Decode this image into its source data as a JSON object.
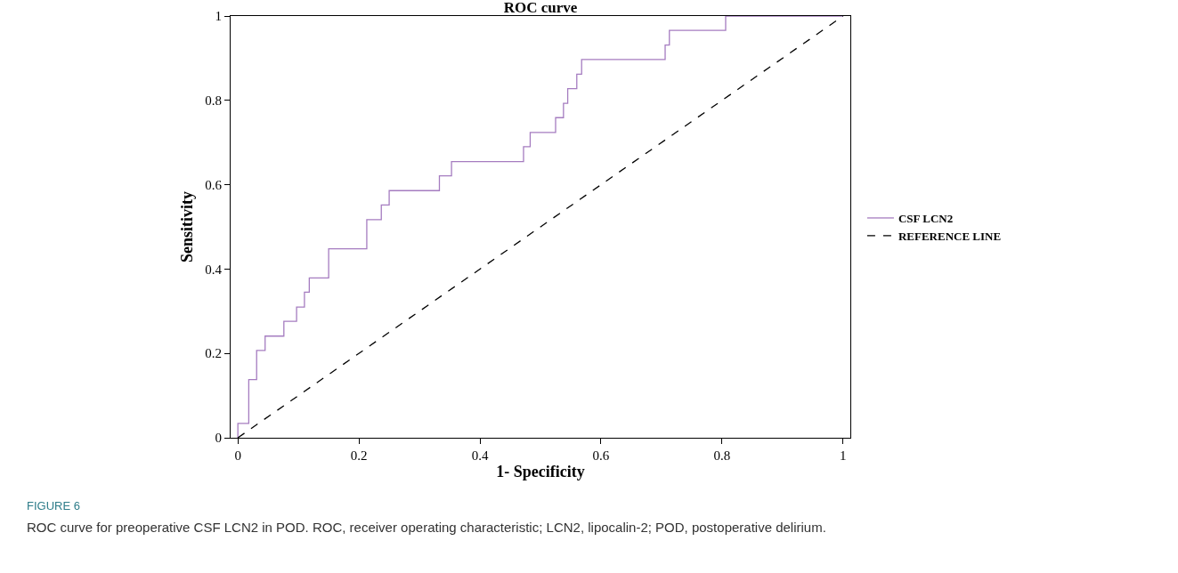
{
  "chart_data": {
    "type": "step",
    "title": "ROC curve",
    "xlabel": "1- Specificity",
    "ylabel": "Sensitivity",
    "xlim": [
      -0.012,
      1.012
    ],
    "ylim": [
      0,
      1
    ],
    "xticks": [
      0,
      0.2,
      0.4,
      0.6,
      0.8,
      1
    ],
    "yticks": [
      0,
      0.2,
      0.4,
      0.6,
      0.8,
      1
    ],
    "grid": false,
    "legend": "right",
    "marker": "none",
    "series": [
      {
        "name": "CSF LCN2",
        "color": "#a57cc0",
        "line_style": "solid",
        "x": [
          0,
          0,
          0.018,
          0.031,
          0.045,
          0.076,
          0.097,
          0.11,
          0.118,
          0.15,
          0.213,
          0.237,
          0.25,
          0.333,
          0.353,
          0.472,
          0.483,
          0.525,
          0.538,
          0.545,
          0.56,
          0.568,
          0.706,
          0.713,
          0.806,
          1
        ],
        "values": [
          0,
          0.034,
          0.138,
          0.207,
          0.241,
          0.276,
          0.31,
          0.345,
          0.379,
          0.448,
          0.517,
          0.552,
          0.586,
          0.621,
          0.655,
          0.69,
          0.724,
          0.759,
          0.793,
          0.828,
          0.862,
          0.897,
          0.931,
          0.966,
          1,
          1
        ]
      },
      {
        "name": "REFERENCE LINE",
        "type": "line",
        "color": "#000000",
        "line_style": "dashed",
        "x": [
          0,
          1
        ],
        "values": [
          0,
          1
        ]
      }
    ],
    "annotations": [
      "FIGURE 6",
      "ROC curve for preoperative CSF LCN2 in POD. ROC, receiver operating characteristic; LCN2, lipocalin-2; POD, postoperative delirium."
    ]
  }
}
